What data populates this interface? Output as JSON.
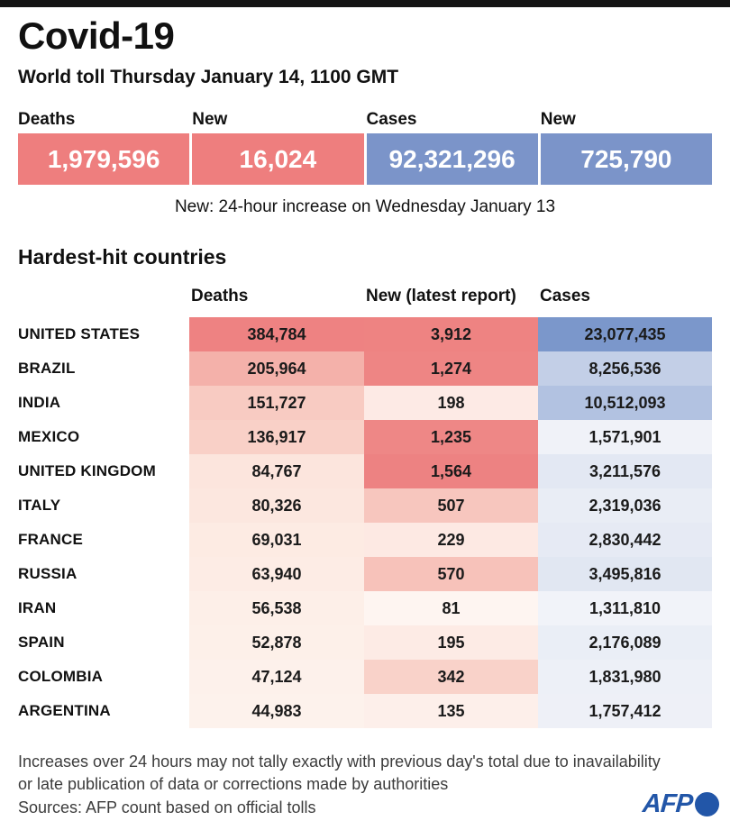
{
  "meta": {
    "accent_red": "#ee7e7e",
    "accent_blue": "#7b94c9",
    "topbar_color": "#141414",
    "logo_blue": "#2256a8"
  },
  "header": {
    "title": "Covid-19",
    "subtitle": "World toll Thursday January 14, 1100 GMT"
  },
  "stats": {
    "boxes": [
      {
        "label": "Deaths",
        "value": "1,979,596",
        "color": "#ee7e7e"
      },
      {
        "label": "New",
        "value": "16,024",
        "color": "#ee7e7e"
      },
      {
        "label": "Cases",
        "value": "92,321,296",
        "color": "#7b94c9"
      },
      {
        "label": "New",
        "value": "725,790",
        "color": "#7b94c9"
      }
    ],
    "note": "New: 24-hour increase on Wednesday January 13"
  },
  "table": {
    "section_title": "Hardest-hit countries",
    "columns": [
      "Deaths",
      "New (latest report)",
      "Cases"
    ],
    "rows": [
      {
        "country": "UNITED STATES",
        "deaths": "384,784",
        "new": "3,912",
        "cases": "23,077,435",
        "deaths_bg": "#ee8282",
        "new_bg": "#ee8382",
        "cases_bg": "#7b97cb"
      },
      {
        "country": "BRAZIL",
        "deaths": "205,964",
        "new": "1,274",
        "cases": "8,256,536",
        "deaths_bg": "#f4b1aa",
        "new_bg": "#ee8584",
        "cases_bg": "#c3cfe7"
      },
      {
        "country": "INDIA",
        "deaths": "151,727",
        "new": "198",
        "cases": "10,512,093",
        "deaths_bg": "#f8cbc2",
        "new_bg": "#fdeae5",
        "cases_bg": "#b2c2e1"
      },
      {
        "country": "MEXICO",
        "deaths": "136,917",
        "new": "1,235",
        "cases": "1,571,901",
        "deaths_bg": "#f9d0c7",
        "new_bg": "#ee8786",
        "cases_bg": "#f0f2f8"
      },
      {
        "country": "UNITED KINGDOM",
        "deaths": "84,767",
        "new": "1,564",
        "cases": "3,211,576",
        "deaths_bg": "#fce5dd",
        "new_bg": "#ed8282",
        "cases_bg": "#e3e8f3"
      },
      {
        "country": "ITALY",
        "deaths": "80,326",
        "new": "507",
        "cases": "2,319,036",
        "deaths_bg": "#fce7df",
        "new_bg": "#f7c6be",
        "cases_bg": "#e9edf5"
      },
      {
        "country": "FRANCE",
        "deaths": "69,031",
        "new": "229",
        "cases": "2,830,442",
        "deaths_bg": "#fdebe3",
        "new_bg": "#fde9e3",
        "cases_bg": "#e6eaf4"
      },
      {
        "country": "RUSSIA",
        "deaths": "63,940",
        "new": "570",
        "cases": "3,495,816",
        "deaths_bg": "#fdece5",
        "new_bg": "#f7c2ba",
        "cases_bg": "#e1e7f2"
      },
      {
        "country": "IRAN",
        "deaths": "56,538",
        "new": "81",
        "cases": "1,311,810",
        "deaths_bg": "#fdefe8",
        "new_bg": "#fef5f1",
        "cases_bg": "#f1f3f9"
      },
      {
        "country": "SPAIN",
        "deaths": "52,878",
        "new": "195",
        "cases": "2,176,089",
        "deaths_bg": "#fdf0e9",
        "new_bg": "#fdebe5",
        "cases_bg": "#eaeef6"
      },
      {
        "country": "COLOMBIA",
        "deaths": "47,124",
        "new": "342",
        "cases": "1,831,980",
        "deaths_bg": "#fdf1eb",
        "new_bg": "#f9d2c9",
        "cases_bg": "#edf0f7"
      },
      {
        "country": "ARGENTINA",
        "deaths": "44,983",
        "new": "135",
        "cases": "1,757,412",
        "deaths_bg": "#fdf2ec",
        "new_bg": "#fdefea",
        "cases_bg": "#eef0f7"
      }
    ]
  },
  "footer": {
    "note_line1": "Increases over 24 hours may not tally exactly with previous day's total due to inavailability",
    "note_line2": "or late publication of data or corrections made by authorities",
    "sources": "Sources: AFP count based on official tolls",
    "logo_text": "AFP"
  },
  "chart_data": {
    "type": "table",
    "title": "Covid-19 — World toll Thursday January 14, 1100 GMT",
    "subtitle_note": "New: 24-hour increase on Wednesday January 13",
    "world_totals": {
      "deaths": 1979596,
      "new_deaths": 16024,
      "cases": 92321296,
      "new_cases": 725790
    },
    "section": "Hardest-hit countries",
    "columns": [
      "Deaths",
      "New (latest report)",
      "Cases"
    ],
    "categories": [
      "UNITED STATES",
      "BRAZIL",
      "INDIA",
      "MEXICO",
      "UNITED KINGDOM",
      "ITALY",
      "FRANCE",
      "RUSSIA",
      "IRAN",
      "SPAIN",
      "COLOMBIA",
      "ARGENTINA"
    ],
    "series": [
      {
        "name": "Deaths",
        "values": [
          384784,
          205964,
          151727,
          136917,
          84767,
          80326,
          69031,
          63940,
          56538,
          52878,
          47124,
          44983
        ]
      },
      {
        "name": "New (latest report)",
        "values": [
          3912,
          1274,
          198,
          1235,
          1564,
          507,
          229,
          570,
          81,
          195,
          342,
          135
        ]
      },
      {
        "name": "Cases",
        "values": [
          23077435,
          8256536,
          10512093,
          1571901,
          3211576,
          2319036,
          2830442,
          3495816,
          1311810,
          2176089,
          1831980,
          1757412
        ]
      }
    ],
    "layout": "heatmap table: red intensity encodes deaths/new magnitude, blue intensity encodes cases magnitude"
  }
}
